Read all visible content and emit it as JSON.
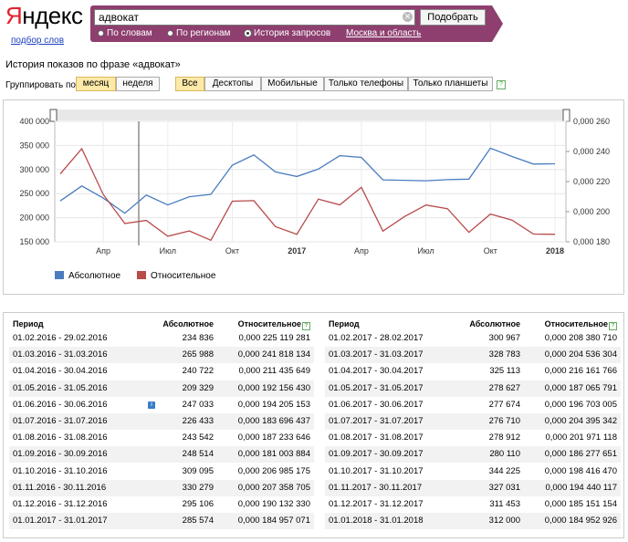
{
  "logo": {
    "first_letter": "Я",
    "rest": "ндекс",
    "subtitle": "подбор слов"
  },
  "search": {
    "query": "адвокат",
    "clear_icon": "✕",
    "submit_label": "Подобрать",
    "modes": [
      {
        "label": "По словам",
        "selected": false
      },
      {
        "label": "По регионам",
        "selected": false
      },
      {
        "label": "История запросов",
        "selected": true
      }
    ],
    "region": "Москва и область"
  },
  "page_title": "История показов по фразе «адвокат»",
  "grouping": {
    "label": "Группировать по:",
    "options": [
      {
        "label": "месяц",
        "selected": true
      },
      {
        "label": "неделя",
        "selected": false
      }
    ]
  },
  "devices": {
    "options": [
      {
        "label": "Все",
        "selected": true
      },
      {
        "label": "Десктопы",
        "selected": false
      },
      {
        "label": "Мобильные",
        "selected": false
      },
      {
        "label": "Только телефоны",
        "selected": false
      },
      {
        "label": "Только планшеты",
        "selected": false
      }
    ],
    "help_icon": "?"
  },
  "chart_data": {
    "type": "line",
    "x": [
      "2016-02",
      "2016-03",
      "2016-04",
      "2016-05",
      "2016-06",
      "2016-07",
      "2016-08",
      "2016-09",
      "2016-10",
      "2016-11",
      "2016-12",
      "2017-01",
      "2017-02",
      "2017-03",
      "2017-04",
      "2017-05",
      "2017-06",
      "2017-07",
      "2017-08",
      "2017-09",
      "2017-10",
      "2017-11",
      "2017-12",
      "2018-01"
    ],
    "x_tick_labels": [
      "Апр",
      "Июл",
      "Окт",
      "2017",
      "Апр",
      "Июл",
      "Окт",
      "2018"
    ],
    "left_axis": {
      "ticks": [
        "150 000",
        "200 000",
        "250 000",
        "300 000",
        "350 000",
        "400 000"
      ],
      "range": [
        150000,
        400000
      ]
    },
    "right_axis": {
      "ticks": [
        "0,000 180",
        "0,000 200",
        "0,000 220",
        "0,000 240",
        "0,000 260"
      ],
      "range": [
        0.00018,
        0.00026
      ]
    },
    "series": [
      {
        "name": "Абсолютное",
        "color": "#4a7cc0",
        "axis": "left",
        "values": [
          234836,
          265988,
          240722,
          209329,
          247033,
          226433,
          243542,
          248514,
          309095,
          330279,
          295106,
          285574,
          300967,
          328783,
          325113,
          278627,
          277674,
          276710,
          278912,
          280110,
          344225,
          327031,
          311453,
          312000
        ]
      },
      {
        "name": "Относительное",
        "color": "#b94a4a",
        "axis": "right",
        "values": [
          0.000225119281,
          0.000241818134,
          0.000211435649,
          0.00019215643,
          0.000194205153,
          0.000183696437,
          0.000187233646,
          0.000181003884,
          0.000206985175,
          0.000207358705,
          0.00019013233,
          0.000184957071,
          0.00020838071,
          0.000204536304,
          0.000216161766,
          0.000187065791,
          0.000196703005,
          0.000204395342,
          0.000201971118,
          0.000186277651,
          0.00019841647,
          0.000194440117,
          0.000185151154,
          0.000184952926
        ]
      }
    ]
  },
  "table": {
    "headers": {
      "period": "Период",
      "absolute": "Абсолютное",
      "relative": "Относительное",
      "help_icon": "?"
    },
    "info_icon": "i",
    "left": [
      [
        "01.02.2016 - 29.02.2016",
        "234 836",
        "0,000 225 119 281"
      ],
      [
        "01.03.2016 - 31.03.2016",
        "265 988",
        "0,000 241 818 134"
      ],
      [
        "01.04.2016 - 30.04.2016",
        "240 722",
        "0,000 211 435 649"
      ],
      [
        "01.05.2016 - 31.05.2016",
        "209 329",
        "0,000 192 156 430"
      ],
      [
        "01.06.2016 - 30.06.2016",
        "247 033",
        "0,000 194 205 153"
      ],
      [
        "01.07.2016 - 31.07.2016",
        "226 433",
        "0,000 183 696 437"
      ],
      [
        "01.08.2016 - 31.08.2016",
        "243 542",
        "0,000 187 233 646"
      ],
      [
        "01.09.2016 - 30.09.2016",
        "248 514",
        "0,000 181 003 884"
      ],
      [
        "01.10.2016 - 31.10.2016",
        "309 095",
        "0,000 206 985 175"
      ],
      [
        "01.11.2016 - 30.11.2016",
        "330 279",
        "0,000 207 358 705"
      ],
      [
        "01.12.2016 - 31.12.2016",
        "295 106",
        "0,000 190 132 330"
      ],
      [
        "01.01.2017 - 31.01.2017",
        "285 574",
        "0,000 184 957 071"
      ]
    ],
    "right": [
      [
        "01.02.2017 - 28.02.2017",
        "300 967",
        "0,000 208 380 710"
      ],
      [
        "01.03.2017 - 31.03.2017",
        "328 783",
        "0,000 204 536 304"
      ],
      [
        "01.04.2017 - 30.04.2017",
        "325 113",
        "0,000 216 161 766"
      ],
      [
        "01.05.2017 - 31.05.2017",
        "278 627",
        "0,000 187 065 791"
      ],
      [
        "01.06.2017 - 30.06.2017",
        "277 674",
        "0,000 196 703 005"
      ],
      [
        "01.07.2017 - 31.07.2017",
        "276 710",
        "0,000 204 395 342"
      ],
      [
        "01.08.2017 - 31.08.2017",
        "278 912",
        "0,000 201 971 118"
      ],
      [
        "01.09.2017 - 30.09.2017",
        "280 110",
        "0,000 186 277 651"
      ],
      [
        "01.10.2017 - 31.10.2017",
        "344 225",
        "0,000 198 416 470"
      ],
      [
        "01.11.2017 - 30.11.2017",
        "327 031",
        "0,000 194 440 117"
      ],
      [
        "01.12.2017 - 31.12.2017",
        "311 453",
        "0,000 185 151 154"
      ],
      [
        "01.01.2018 - 31.01.2018",
        "312 000",
        "0,000 184 952 926"
      ]
    ]
  }
}
